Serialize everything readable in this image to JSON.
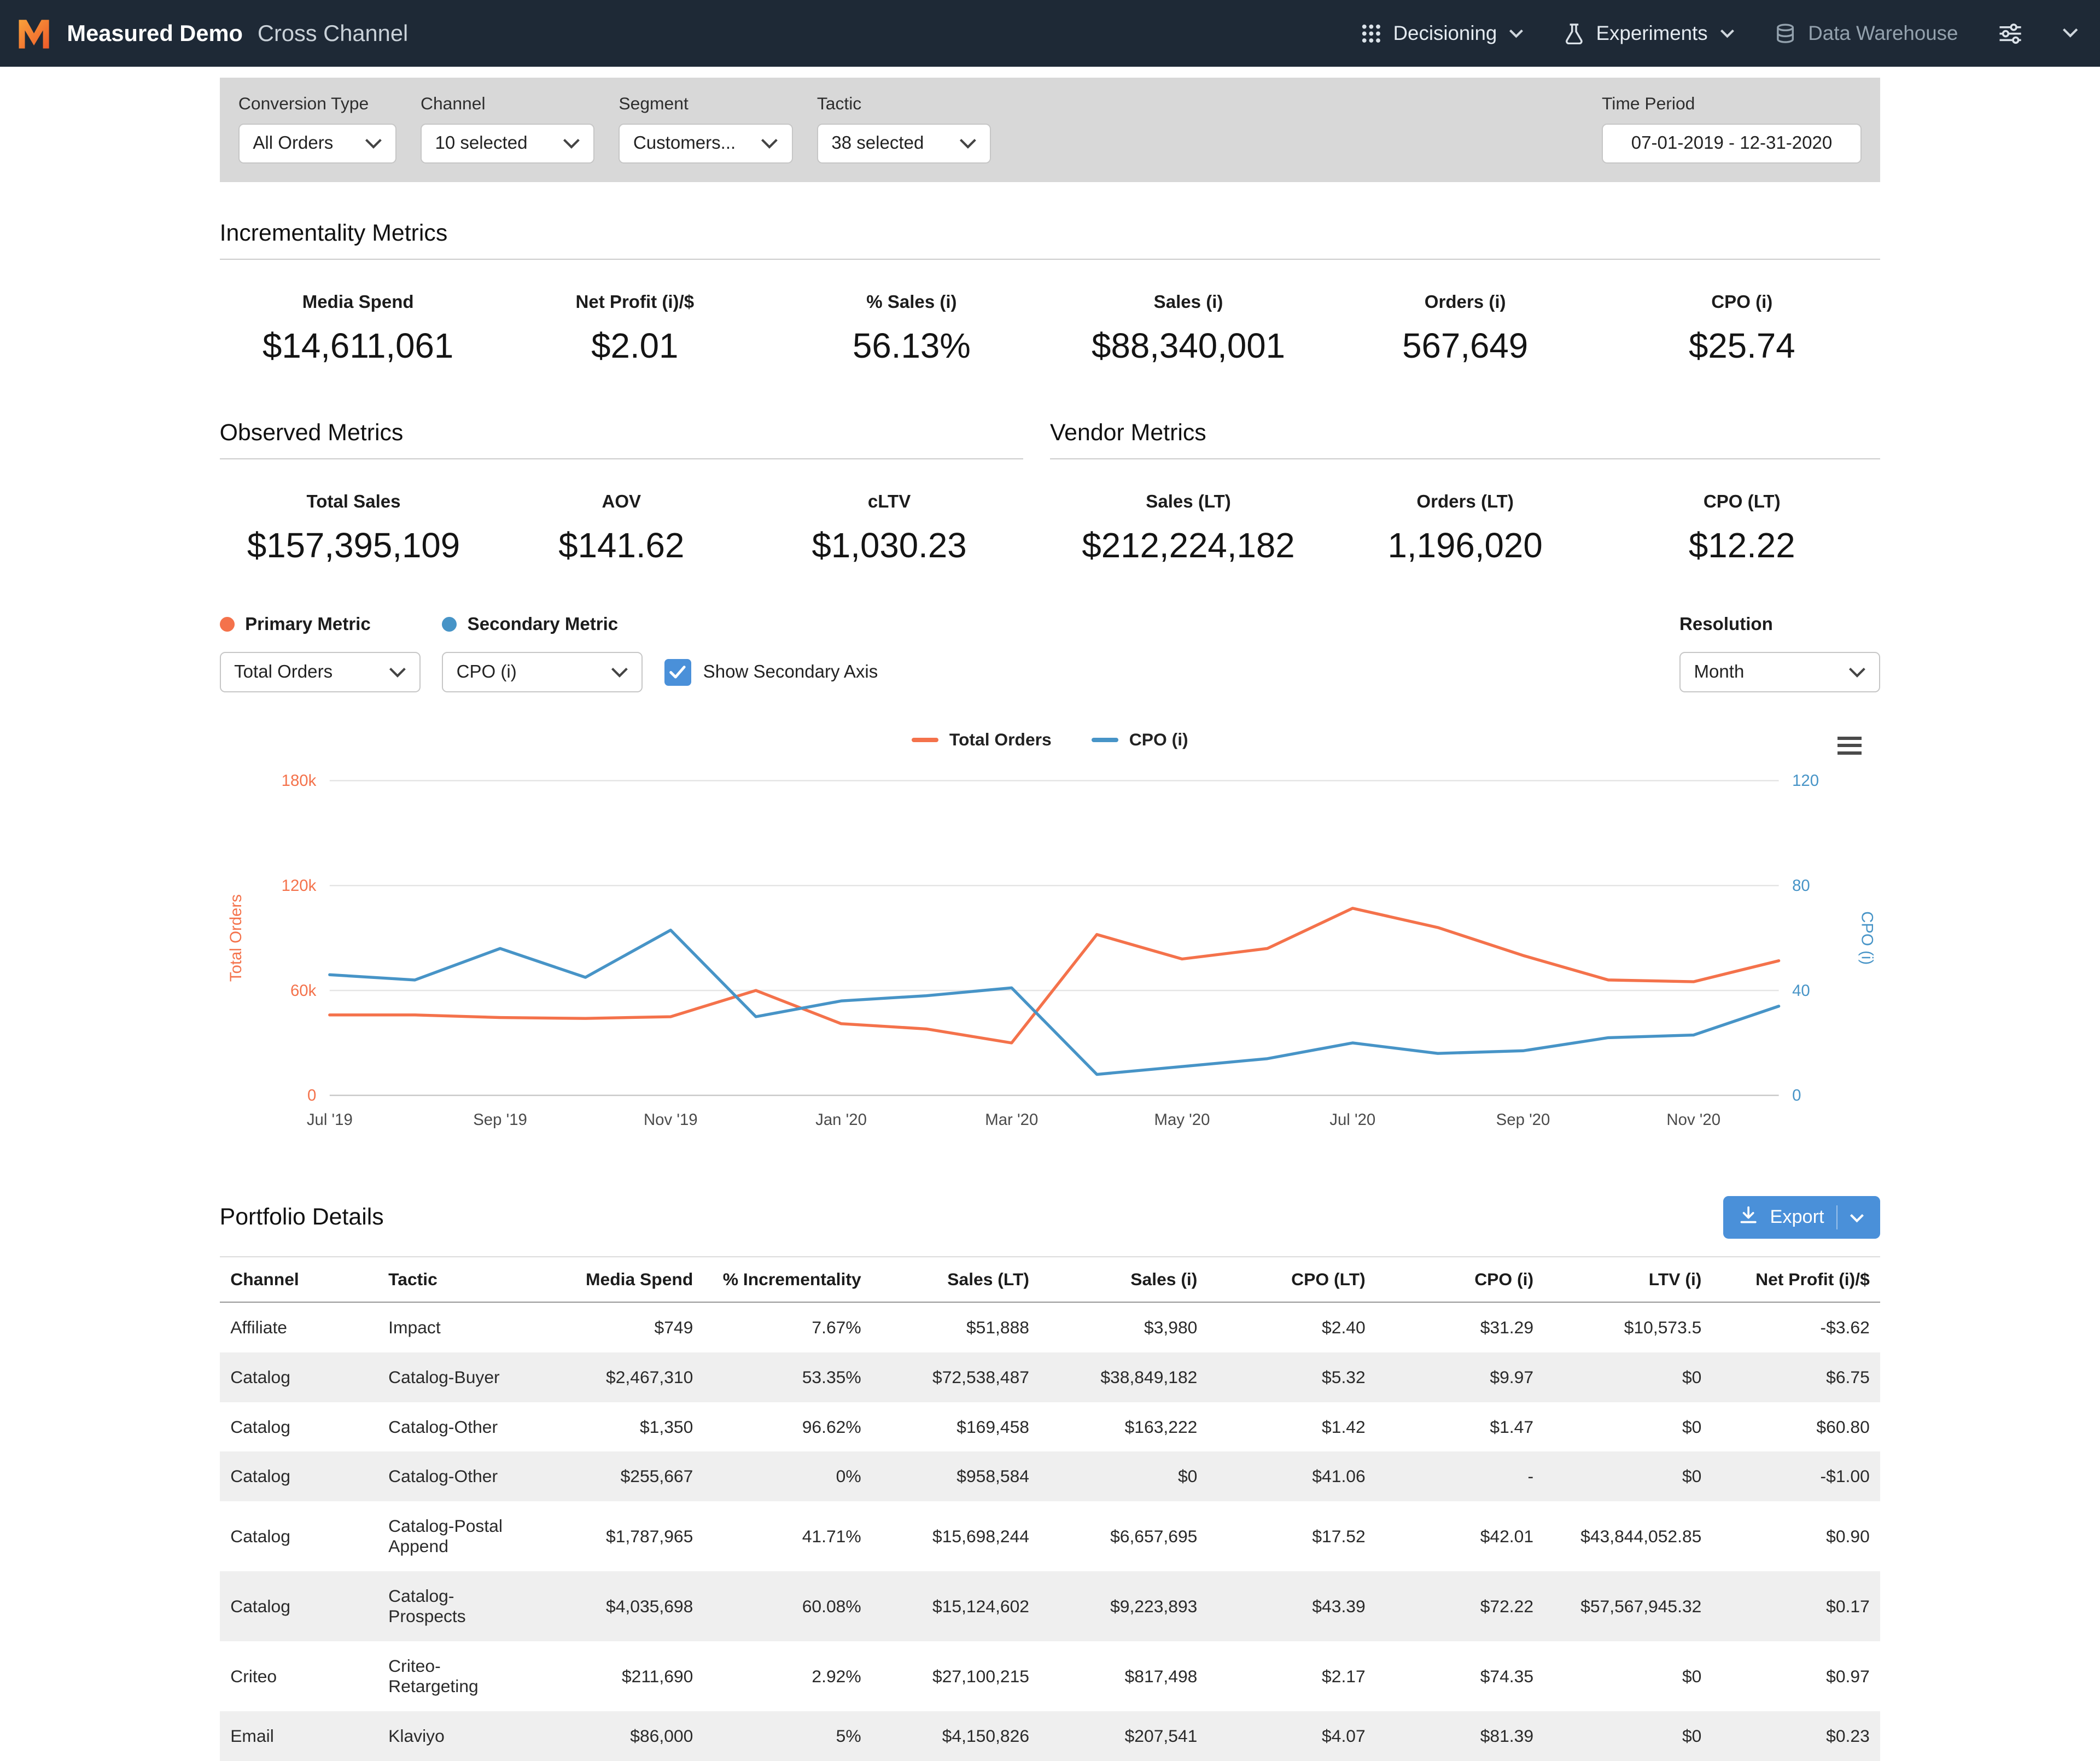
{
  "colors": {
    "primary_orange": "#f4724b",
    "secondary_blue": "#4794c7",
    "action_blue": "#4a90d9",
    "nav_bg": "#1e2936"
  },
  "nav": {
    "brand": "Measured Demo",
    "section": "Cross Channel",
    "decisioning": "Decisioning",
    "experiments": "Experiments",
    "data_warehouse": "Data Warehouse"
  },
  "filters": {
    "conversion_type": {
      "label": "Conversion Type",
      "value": "All Orders"
    },
    "channel": {
      "label": "Channel",
      "value": "10 selected"
    },
    "segment": {
      "label": "Segment",
      "value": "Customers..."
    },
    "tactic": {
      "label": "Tactic",
      "value": "38 selected"
    },
    "time_period": {
      "label": "Time Period",
      "value": "07-01-2019 - 12-31-2020"
    }
  },
  "incrementality_metrics": {
    "title": "Incrementality Metrics",
    "items": [
      {
        "label": "Media Spend",
        "value": "$14,611,061"
      },
      {
        "label": "Net Profit (i)/$",
        "value": "$2.01"
      },
      {
        "label": "% Sales (i)",
        "value": "56.13%"
      },
      {
        "label": "Sales (i)",
        "value": "$88,340,001"
      },
      {
        "label": "Orders (i)",
        "value": "567,649"
      },
      {
        "label": "CPO (i)",
        "value": "$25.74"
      }
    ]
  },
  "observed_metrics": {
    "title": "Observed Metrics",
    "items": [
      {
        "label": "Total Sales",
        "value": "$157,395,109"
      },
      {
        "label": "AOV",
        "value": "$141.62"
      },
      {
        "label": "cLTV",
        "value": "$1,030.23"
      }
    ]
  },
  "vendor_metrics": {
    "title": "Vendor Metrics",
    "items": [
      {
        "label": "Sales (LT)",
        "value": "$212,224,182"
      },
      {
        "label": "Orders (LT)",
        "value": "1,196,020"
      },
      {
        "label": "CPO (LT)",
        "value": "$12.22"
      }
    ]
  },
  "chart_controls": {
    "primary_label": "Primary Metric",
    "primary_value": "Total Orders",
    "secondary_label": "Secondary Metric",
    "secondary_value": "CPO (i)",
    "secondary_axis_label": "Show Secondary Axis",
    "secondary_axis_checked": true,
    "resolution_label": "Resolution",
    "resolution_value": "Month"
  },
  "chart_data": {
    "type": "line",
    "title": "",
    "x": [
      "Jul '19",
      "Aug '19",
      "Sep '19",
      "Oct '19",
      "Nov '19",
      "Dec '19",
      "Jan '20",
      "Feb '20",
      "Mar '20",
      "Apr '20",
      "May '20",
      "Jun '20",
      "Jul '20",
      "Aug '20",
      "Sep '20",
      "Oct '20",
      "Nov '20",
      "Dec '20"
    ],
    "x_tick_labels": [
      "Jul '19",
      "Sep '19",
      "Nov '19",
      "Jan '20",
      "Mar '20",
      "May '20",
      "Jul '20",
      "Sep '20",
      "Nov '20"
    ],
    "series": [
      {
        "name": "Total Orders",
        "axis": "left",
        "color": "#f4724b",
        "values": [
          46000,
          46000,
          44500,
          44000,
          45000,
          60000,
          41000,
          38000,
          30000,
          92000,
          78000,
          84000,
          107000,
          96000,
          80000,
          66000,
          65000,
          77000
        ]
      },
      {
        "name": "CPO (i)",
        "axis": "right",
        "color": "#4794c7",
        "values": [
          46,
          44,
          56,
          45,
          63,
          30,
          36,
          38,
          41,
          8,
          11,
          14,
          20,
          16,
          17,
          22,
          23,
          34
        ]
      }
    ],
    "left_axis": {
      "label": "Total Orders",
      "min": 0,
      "max": 180000,
      "ticks": [
        "0",
        "60k",
        "120k",
        "180k"
      ]
    },
    "right_axis": {
      "label": "CPO (i)",
      "min": 0,
      "max": 120,
      "ticks": [
        "0",
        "40",
        "80",
        "120"
      ]
    },
    "grid": true,
    "legend_position": "top"
  },
  "portfolio": {
    "title": "Portfolio Details",
    "export_label": "Export",
    "columns": [
      "Channel",
      "Tactic",
      "Media Spend",
      "% Incrementality",
      "Sales (LT)",
      "Sales (i)",
      "CPO (LT)",
      "CPO (i)",
      "LTV (i)",
      "Net Profit (i)/$"
    ],
    "rows": [
      [
        "Affiliate",
        "Impact",
        "$749",
        "7.67%",
        "$51,888",
        "$3,980",
        "$2.40",
        "$31.29",
        "$10,573.5",
        "-$3.62"
      ],
      [
        "Catalog",
        "Catalog-Buyer",
        "$2,467,310",
        "53.35%",
        "$72,538,487",
        "$38,849,182",
        "$5.32",
        "$9.97",
        "$0",
        "$6.75"
      ],
      [
        "Catalog",
        "Catalog-Other",
        "$1,350",
        "96.62%",
        "$169,458",
        "$163,222",
        "$1.42",
        "$1.47",
        "$0",
        "$60.80"
      ],
      [
        "Catalog",
        "Catalog-Other",
        "$255,667",
        "0%",
        "$958,584",
        "$0",
        "$41.06",
        "-",
        "$0",
        "-$1.00"
      ],
      [
        "Catalog",
        "Catalog-Postal Append",
        "$1,787,965",
        "41.71%",
        "$15,698,244",
        "$6,657,695",
        "$17.52",
        "$42.01",
        "$43,844,052.85",
        "$0.90"
      ],
      [
        "Catalog",
        "Catalog-Prospects",
        "$4,035,698",
        "60.08%",
        "$15,124,602",
        "$9,223,893",
        "$43.39",
        "$72.22",
        "$57,567,945.32",
        "$0.17"
      ],
      [
        "Criteo",
        "Criteo-Retargeting",
        "$211,690",
        "2.92%",
        "$27,100,215",
        "$817,498",
        "$2.17",
        "$74.35",
        "$0",
        "$0.97"
      ],
      [
        "Email",
        "Klaviyo",
        "$86,000",
        "5%",
        "$4,150,826",
        "$207,541",
        "$4.07",
        "$81.39",
        "$0",
        "$0.23"
      ]
    ]
  }
}
